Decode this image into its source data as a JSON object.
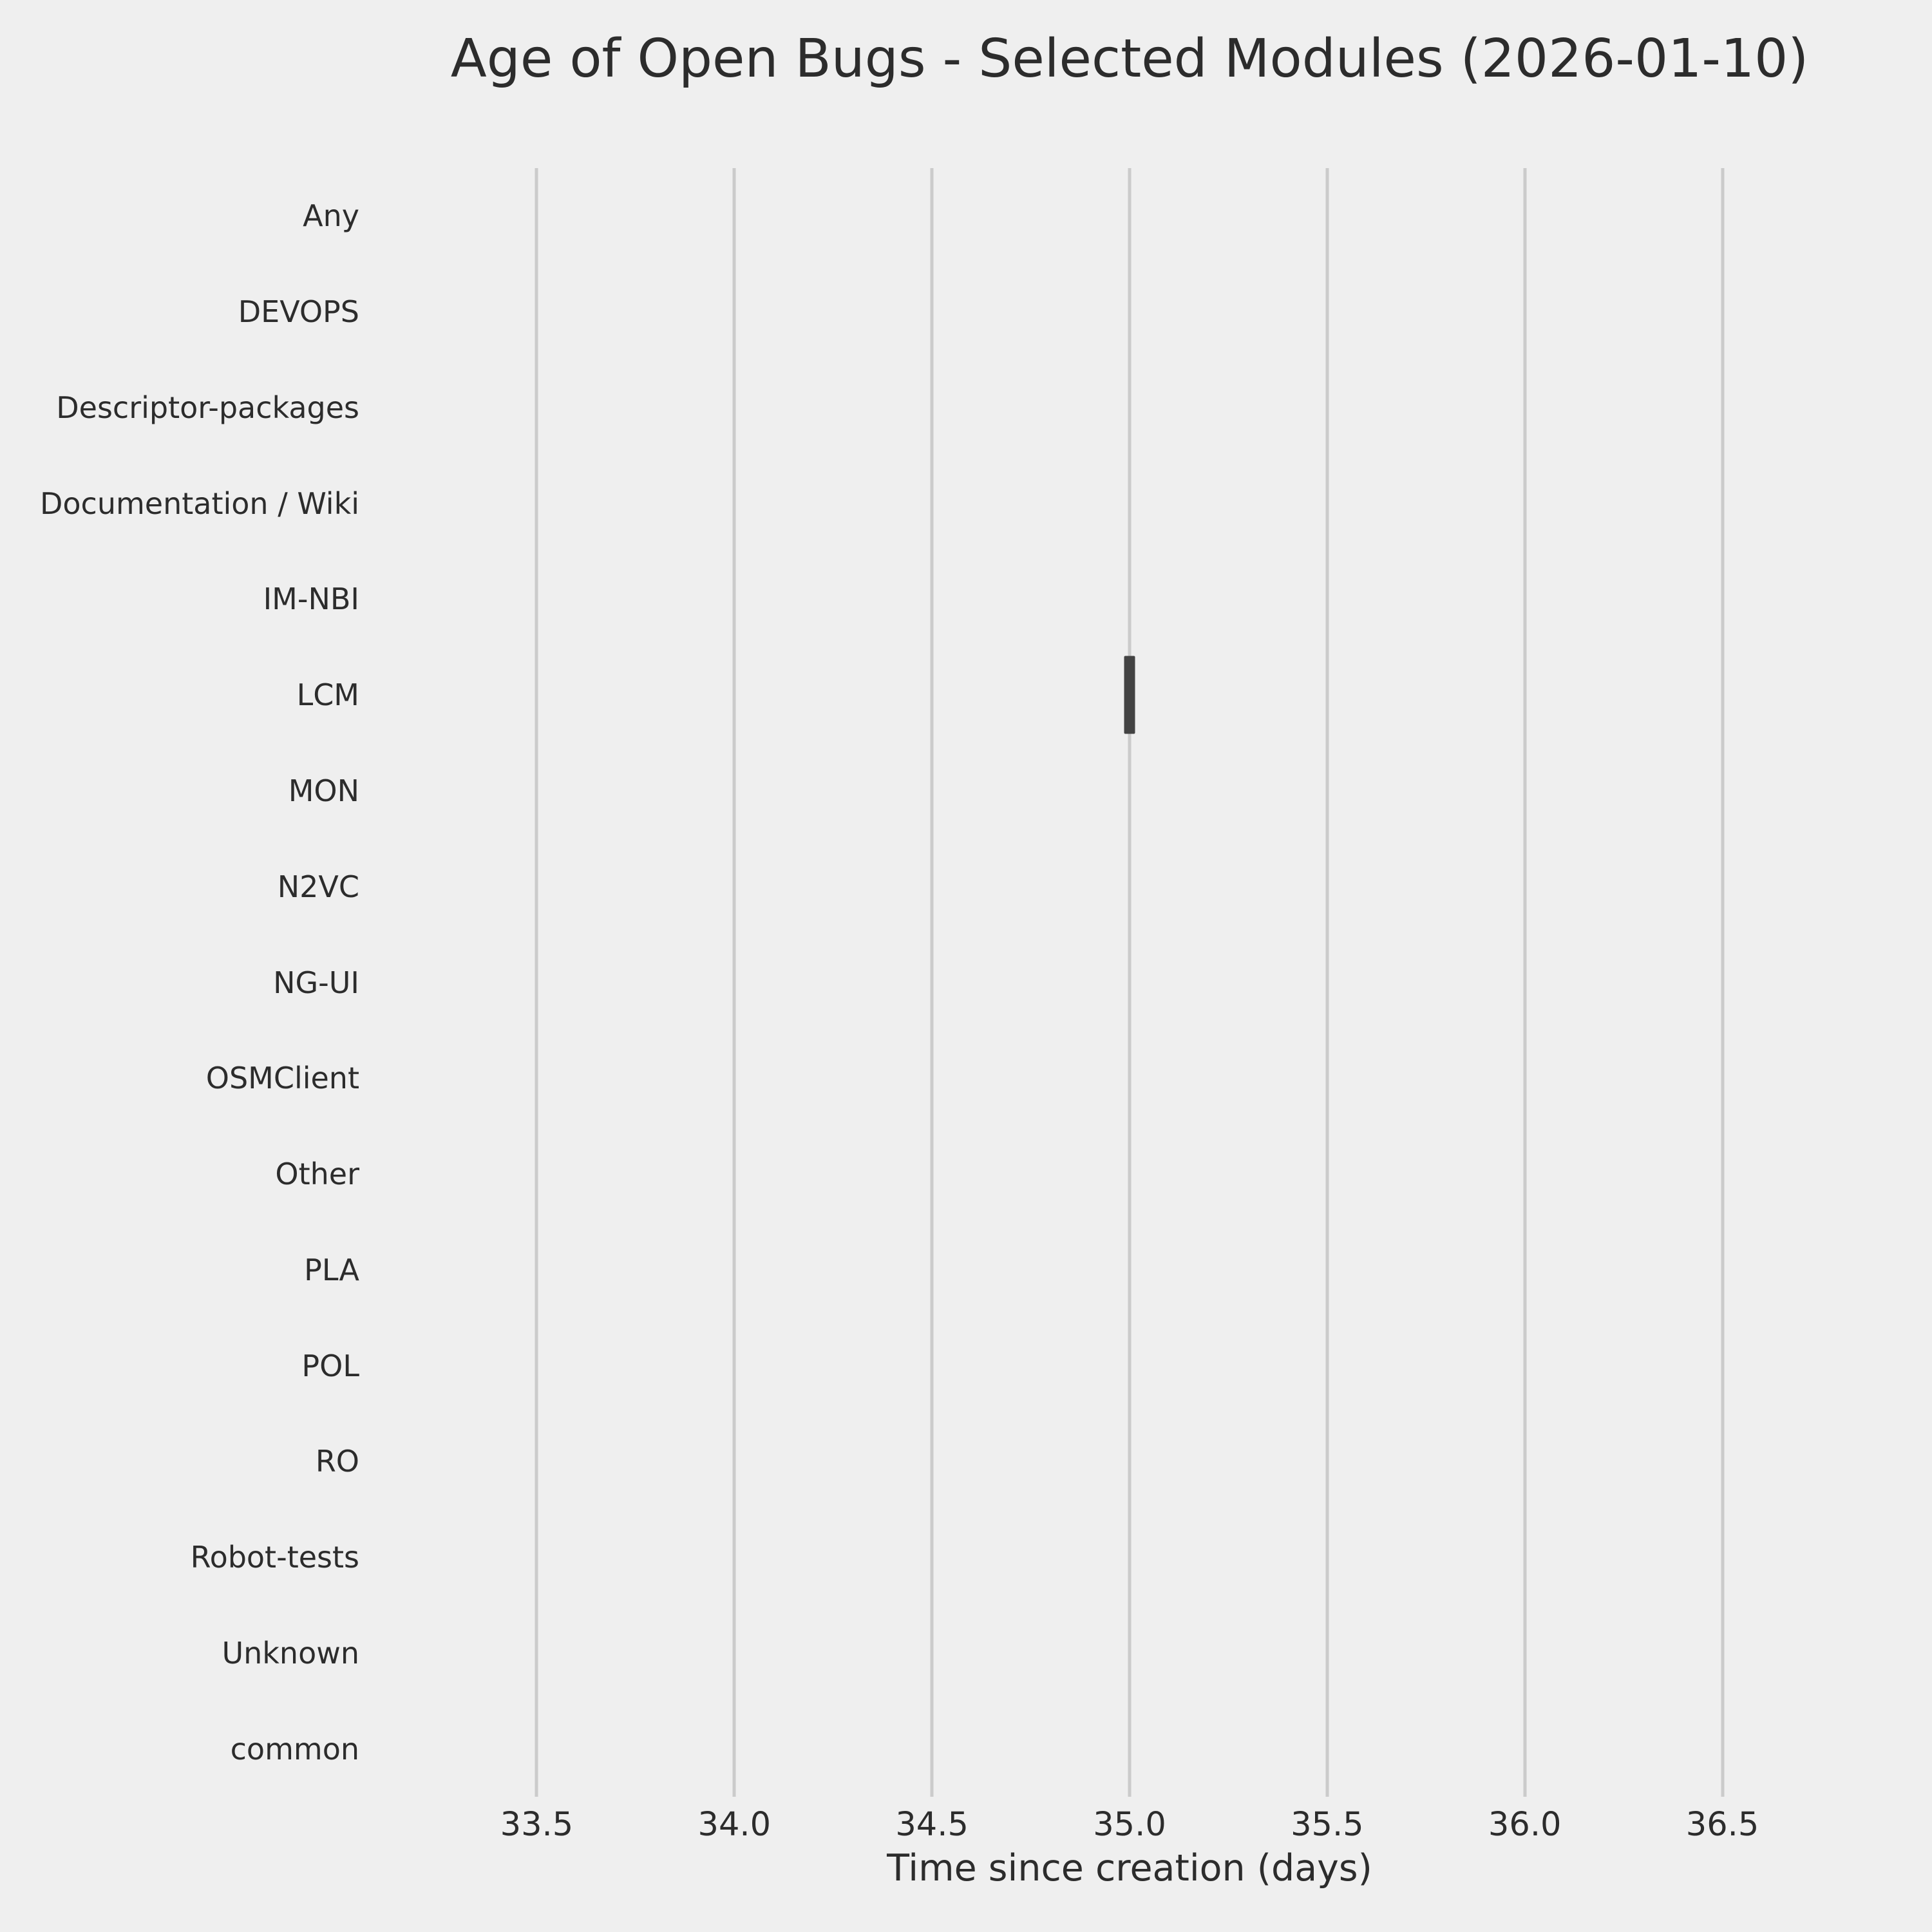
{
  "chart_data": {
    "type": "boxplot",
    "orientation": "horizontal",
    "title": "Age of Open Bugs - Selected Modules (2026-01-10)",
    "xlabel": "Time since creation (days)",
    "ylabel": "",
    "categories": [
      "Any",
      "DEVOPS",
      "Descriptor-packages",
      "Documentation / Wiki",
      "IM-NBI",
      "LCM",
      "MON",
      "N2VC",
      "NG-UI",
      "OSMClient",
      "Other",
      "PLA",
      "POL",
      "RO",
      "Robot-tests",
      "Unknown",
      "common"
    ],
    "values": [
      null,
      null,
      null,
      null,
      null,
      35.0,
      null,
      null,
      null,
      null,
      null,
      null,
      null,
      null,
      null,
      null,
      null
    ],
    "value_note": "Only the LCM row shows data: a single collapsed box (min=q1=median=q3=max) at 35.0 days",
    "xlim": [
      33.25,
      36.75
    ],
    "xticks": [
      33.5,
      34.0,
      34.5,
      35.0,
      35.5,
      36.0,
      36.5
    ],
    "xtick_labels": [
      "33.5",
      "34.0",
      "34.5",
      "35.0",
      "35.5",
      "36.0",
      "36.5"
    ],
    "grid": "vertical-only",
    "legend": "none",
    "colors": {
      "background": "#efefef",
      "gridline": "#cbcbcb",
      "text": "#2c2c2c",
      "box": "#434343"
    }
  }
}
